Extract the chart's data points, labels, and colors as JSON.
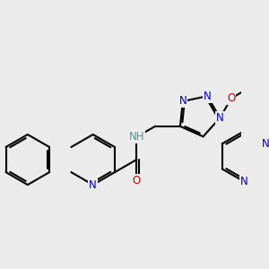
{
  "background_color": "#ebebeb",
  "bond_color": "#000000",
  "bond_width": 1.5,
  "atom_colors": {
    "N": "#0000cc",
    "O": "#cc0000",
    "H": "#4a9999"
  },
  "font_size": 8.5,
  "figsize": [
    3.0,
    3.0
  ],
  "dpi": 100,
  "xlim": [
    -1.0,
    8.5
  ],
  "ylim": [
    -1.5,
    3.5
  ]
}
